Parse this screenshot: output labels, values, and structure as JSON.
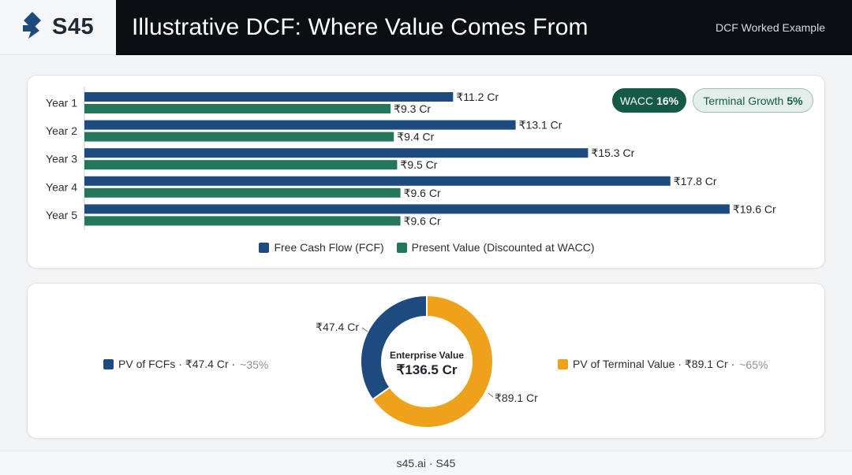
{
  "header": {
    "brand": "S45",
    "title": "Illustrative DCF: Where Value Comes From",
    "tag": "DCF Worked Example"
  },
  "assumptions": {
    "wacc_label": "WACC",
    "wacc_value": "16%",
    "growth_label": "Terminal Growth",
    "growth_value": "5%"
  },
  "chart_data": [
    {
      "type": "bar",
      "orientation": "horizontal",
      "categories": [
        "Year 1",
        "Year 2",
        "Year 3",
        "Year 4",
        "Year 5"
      ],
      "series": [
        {
          "name": "Free Cash Flow (FCF)",
          "color": "#1d4b80",
          "values": [
            11.2,
            13.1,
            15.3,
            17.8,
            19.6
          ],
          "labels": [
            "₹11.2 Cr",
            "₹13.1 Cr",
            "₹15.3 Cr",
            "₹17.8 Cr",
            "₹19.6 Cr"
          ]
        },
        {
          "name": "Present Value (Discounted at WACC)",
          "color": "#24775a",
          "values": [
            9.3,
            9.4,
            9.5,
            9.6,
            9.6
          ],
          "labels": [
            "₹9.3 Cr",
            "₹9.4 Cr",
            "₹9.5 Cr",
            "₹9.6 Cr",
            "₹9.6 Cr"
          ]
        }
      ],
      "xlim": [
        0,
        22
      ],
      "grid": false,
      "legend": "bottom-center"
    },
    {
      "type": "pie",
      "variant": "donut",
      "center_label": "Enterprise Value",
      "center_value": "₹136.5 Cr",
      "slices": [
        {
          "name": "PV of FCFs",
          "value": 47.4,
          "color": "#1d4b80",
          "label": "₹47.4 Cr",
          "legend_text": "PV of FCFs · ₹47.4 Cr ·",
          "share_text": "~35%"
        },
        {
          "name": "PV of Terminal Value",
          "value": 89.1,
          "color": "#eea21b",
          "label": "₹89.1 Cr",
          "legend_text": "PV of Terminal Value · ₹89.1 Cr ·",
          "share_text": "~65%"
        }
      ]
    }
  ],
  "footer": {
    "text": "s45.ai · S45"
  }
}
